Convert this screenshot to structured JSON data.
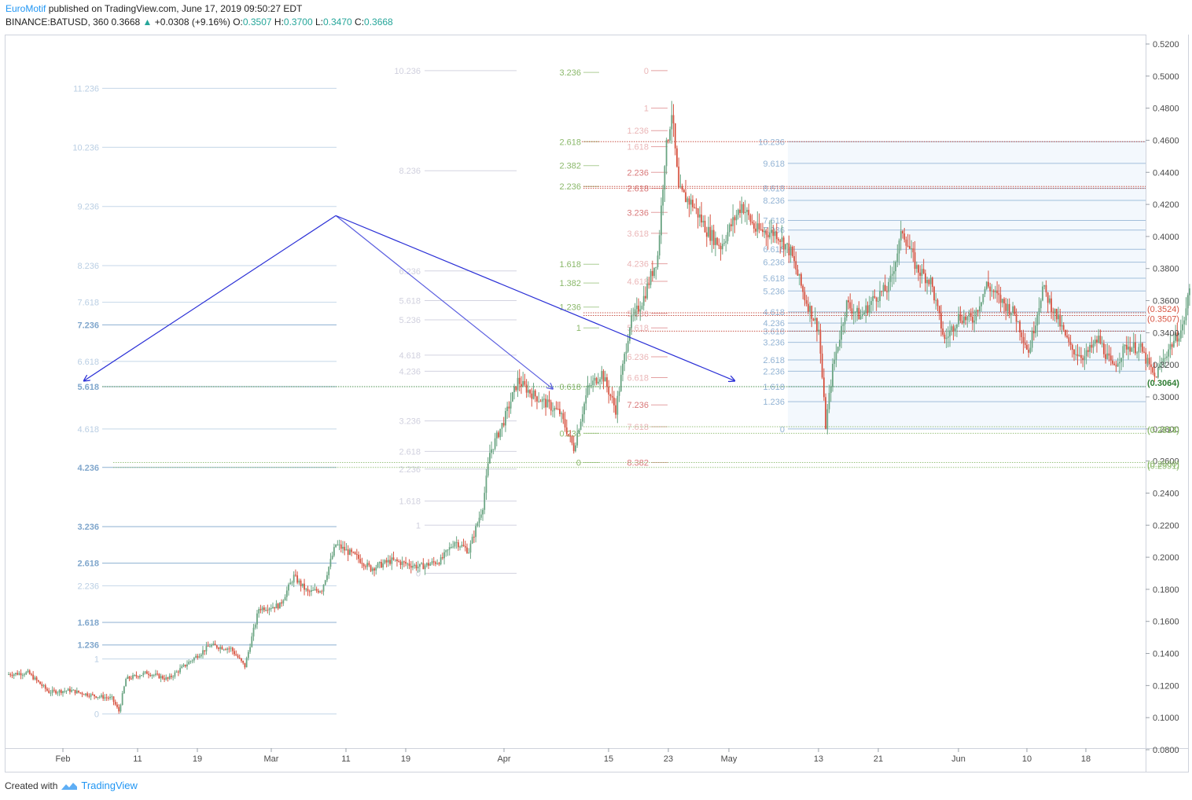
{
  "header": {
    "author": "EuroMotif",
    "published": "published on TradingView.com, June 17, 2019 09:50:27 EDT",
    "symbol": "BINANCE:BATUSD, 360",
    "last": "0.3668",
    "arrow": "▲",
    "change": "+0.0308 (+9.16%)",
    "o_label": "O:",
    "o_value": "0.3507",
    "h_label": "H:",
    "h_value": "0.3700",
    "l_label": "L:",
    "l_value": "0.3470",
    "c_label": "C:",
    "c_value": "0.3668"
  },
  "footer": {
    "created_with": "Created with",
    "brand": "TradingView"
  },
  "colors": {
    "up": "#6ba583",
    "down": "#d75442",
    "fib_blue": "#7fa6cc",
    "fib_blue_light": "#b7cde6",
    "fib_green": "#8ab86a",
    "fib_red": "#d9797a",
    "fib_gray": "#c8c8d8",
    "trend": "#2a2fd6"
  },
  "chart_data": {
    "type": "candlestick",
    "title": "",
    "price_axis": {
      "ticks": [
        "0.5200",
        "0.5000",
        "0.4800",
        "0.4600",
        "0.4400",
        "0.4200",
        "0.4000",
        "0.3800",
        "0.3600",
        "0.3400",
        "0.3200",
        "0.3000",
        "0.2800",
        "0.2600",
        "0.2400",
        "0.2200",
        "0.2000",
        "0.1800",
        "0.1600",
        "0.1400",
        "0.1200",
        "0.1000",
        "0.0800"
      ],
      "ylim": [
        0.08,
        0.52
      ]
    },
    "time_axis": {
      "ticks": [
        "Feb",
        "11",
        "19",
        "Mar",
        "11",
        "19",
        "Apr",
        "15",
        "23",
        "May",
        "13",
        "21",
        "Jun",
        "10",
        "18"
      ],
      "range": [
        "2019-01-24",
        "2019-06-24"
      ]
    },
    "price_tags": [
      {
        "label": "(0.3524)",
        "value": 0.3524,
        "color": "#d75442"
      },
      {
        "label": "(0.3507)",
        "value": 0.3507,
        "color": "#d75442"
      },
      {
        "label": "(0.3064)",
        "value": 0.3064,
        "color": "#2e7d32"
      },
      {
        "label": "(0.2814)",
        "value": 0.2814,
        "color": "#8ab86a"
      },
      {
        "label": "(0.2773)",
        "value": 0.2773,
        "color": "#8ab86a"
      },
      {
        "label": "(0.2591)",
        "value": 0.2591,
        "color": "#8ab86a"
      },
      {
        "label": "(0.2560)",
        "value": 0.256,
        "color": "#8ab86a"
      }
    ],
    "fib_sets": [
      {
        "name": "left-blue",
        "color": "#7fa6cc",
        "levels": [
          {
            "label": "11.236",
            "price": 0.4924
          },
          {
            "label": "10.236",
            "price": 0.4556
          },
          {
            "label": "9.236",
            "price": 0.4187
          },
          {
            "label": "8.236",
            "price": 0.3818
          },
          {
            "label": "7.618",
            "price": 0.359
          },
          {
            "label": "7.236",
            "price": 0.3449
          },
          {
            "label": "6.618",
            "price": 0.3221
          },
          {
            "label": "5.618",
            "price": 0.3064
          },
          {
            "label": "4.618",
            "price": 0.28
          },
          {
            "label": "4.236",
            "price": 0.256
          },
          {
            "label": "3.236",
            "price": 0.2191
          },
          {
            "label": "2.618",
            "price": 0.1963
          },
          {
            "label": "2.236",
            "price": 0.1822
          },
          {
            "label": "1.618",
            "price": 0.1594
          },
          {
            "label": "1.236",
            "price": 0.1453
          },
          {
            "label": "1",
            "price": 0.1366
          },
          {
            "label": "0",
            "price": 0.1023
          }
        ]
      },
      {
        "name": "mid-gray",
        "color": "#c8c8d8",
        "levels": [
          {
            "label": "10.236",
            "price": 0.5034
          },
          {
            "label": "8.236",
            "price": 0.441
          },
          {
            "label": "6.236",
            "price": 0.3785
          },
          {
            "label": "5.618",
            "price": 0.36
          },
          {
            "label": "5.236",
            "price": 0.348
          },
          {
            "label": "4.618",
            "price": 0.326
          },
          {
            "label": "4.236",
            "price": 0.316
          },
          {
            "label": "3.236",
            "price": 0.285
          },
          {
            "label": "2.618",
            "price": 0.266
          },
          {
            "label": "2.236",
            "price": 0.255
          },
          {
            "label": "1.618",
            "price": 0.235
          },
          {
            "label": "1",
            "price": 0.22
          },
          {
            "label": "0",
            "price": 0.19
          }
        ]
      },
      {
        "name": "mid-green",
        "color": "#8ab86a",
        "levels": [
          {
            "label": "3.236",
            "price": 0.5023
          },
          {
            "label": "2.618",
            "price": 0.4591
          },
          {
            "label": "2.382",
            "price": 0.4442
          },
          {
            "label": "2.236",
            "price": 0.4312
          },
          {
            "label": "1.618",
            "price": 0.3827
          },
          {
            "label": "1.382",
            "price": 0.371
          },
          {
            "label": "1.236",
            "price": 0.356
          },
          {
            "label": "1",
            "price": 0.343
          },
          {
            "label": "0.618",
            "price": 0.3064
          },
          {
            "label": "0.236",
            "price": 0.2773
          },
          {
            "label": "0",
            "price": 0.2591
          }
        ]
      },
      {
        "name": "mid-red",
        "color": "#d9797a",
        "levels": [
          {
            "label": "0",
            "price": 0.5034
          },
          {
            "label": "1",
            "price": 0.48
          },
          {
            "label": "1.236",
            "price": 0.466
          },
          {
            "label": "1.618",
            "price": 0.456
          },
          {
            "label": "2.236",
            "price": 0.44
          },
          {
            "label": "2.618",
            "price": 0.43
          },
          {
            "label": "3.236",
            "price": 0.415
          },
          {
            "label": "3.618",
            "price": 0.402
          },
          {
            "label": "4.236",
            "price": 0.383
          },
          {
            "label": "4.618",
            "price": 0.372
          },
          {
            "label": "5.236",
            "price": 0.352
          },
          {
            "label": "5.618",
            "price": 0.343
          },
          {
            "label": "6.236",
            "price": 0.325
          },
          {
            "label": "6.618",
            "price": 0.312
          },
          {
            "label": "7.236",
            "price": 0.295
          },
          {
            "label": "7.618",
            "price": 0.2814
          },
          {
            "label": "8.382",
            "price": 0.2591
          }
        ]
      },
      {
        "name": "right-blue",
        "color": "#7fa6cc",
        "levels": [
          {
            "label": "10.236",
            "price": 0.4591
          },
          {
            "label": "9.618",
            "price": 0.4456
          },
          {
            "label": "8.618",
            "price": 0.43
          },
          {
            "label": "8.236",
            "price": 0.4225
          },
          {
            "label": "7.618",
            "price": 0.41
          },
          {
            "label": "7.236",
            "price": 0.404
          },
          {
            "label": "6.618",
            "price": 0.392
          },
          {
            "label": "6.236",
            "price": 0.384
          },
          {
            "label": "5.618",
            "price": 0.374
          },
          {
            "label": "5.236",
            "price": 0.366
          },
          {
            "label": "4.618",
            "price": 0.353
          },
          {
            "label": "4.236",
            "price": 0.346
          },
          {
            "label": "3.618",
            "price": 0.341
          },
          {
            "label": "3.236",
            "price": 0.334
          },
          {
            "label": "2.618",
            "price": 0.323
          },
          {
            "label": "2.236",
            "price": 0.316
          },
          {
            "label": "1.618",
            "price": 0.3064
          },
          {
            "label": "1.236",
            "price": 0.297
          },
          {
            "label": "0",
            "price": 0.28
          }
        ]
      }
    ],
    "trend_lines": [
      {
        "name": "rise",
        "from": {
          "date": "2019-03-12",
          "price": 0.413
        },
        "to": {
          "date": "2019-02-04",
          "price": 0.31
        }
      },
      {
        "name": "drop-to-apr",
        "from": {
          "date": "2019-03-12",
          "price": 0.413
        },
        "to": {
          "date": "2019-04-12",
          "price": 0.305
        }
      },
      {
        "name": "drop-to-may",
        "from": {
          "date": "2019-03-12",
          "price": 0.413
        },
        "to": {
          "date": "2019-05-08",
          "price": 0.31
        }
      }
    ],
    "price_path": [
      [
        "2019-01-24",
        0.127
      ],
      [
        "2019-01-27",
        0.128
      ],
      [
        "2019-01-30",
        0.116
      ],
      [
        "2019-02-02",
        0.117
      ],
      [
        "2019-02-05",
        0.114
      ],
      [
        "2019-02-08",
        0.112
      ],
      [
        "2019-02-09",
        0.104
      ],
      [
        "2019-02-10",
        0.124
      ],
      [
        "2019-02-13",
        0.128
      ],
      [
        "2019-02-16",
        0.124
      ],
      [
        "2019-02-20",
        0.138
      ],
      [
        "2019-02-22",
        0.145
      ],
      [
        "2019-02-25",
        0.143
      ],
      [
        "2019-02-27",
        0.132
      ],
      [
        "2019-03-01",
        0.168
      ],
      [
        "2019-03-04",
        0.17
      ],
      [
        "2019-03-06",
        0.188
      ],
      [
        "2019-03-08",
        0.178
      ],
      [
        "2019-03-10",
        0.18
      ],
      [
        "2019-03-12",
        0.208
      ],
      [
        "2019-03-15",
        0.2
      ],
      [
        "2019-03-17",
        0.193
      ],
      [
        "2019-03-20",
        0.198
      ],
      [
        "2019-03-24",
        0.194
      ],
      [
        "2019-03-27",
        0.198
      ],
      [
        "2019-03-29",
        0.21
      ],
      [
        "2019-03-31",
        0.204
      ],
      [
        "2019-04-02",
        0.232
      ],
      [
        "2019-04-03",
        0.265
      ],
      [
        "2019-04-05",
        0.285
      ],
      [
        "2019-04-07",
        0.31
      ],
      [
        "2019-04-09",
        0.302
      ],
      [
        "2019-04-11",
        0.296
      ],
      [
        "2019-04-13",
        0.29
      ],
      [
        "2019-04-15",
        0.268
      ],
      [
        "2019-04-17",
        0.305
      ],
      [
        "2019-04-19",
        0.315
      ],
      [
        "2019-04-21",
        0.292
      ],
      [
        "2019-04-23",
        0.345
      ],
      [
        "2019-04-25",
        0.362
      ],
      [
        "2019-04-27",
        0.388
      ],
      [
        "2019-04-28",
        0.448
      ],
      [
        "2019-04-29",
        0.478
      ],
      [
        "2019-04-30",
        0.428
      ],
      [
        "2019-05-02",
        0.42
      ],
      [
        "2019-05-04",
        0.404
      ],
      [
        "2019-05-06",
        0.394
      ],
      [
        "2019-05-09",
        0.42
      ],
      [
        "2019-05-11",
        0.404
      ],
      [
        "2019-05-14",
        0.402
      ],
      [
        "2019-05-16",
        0.39
      ],
      [
        "2019-05-18",
        0.362
      ],
      [
        "2019-05-20",
        0.342
      ],
      [
        "2019-05-21",
        0.282
      ],
      [
        "2019-05-22",
        0.318
      ],
      [
        "2019-05-24",
        0.358
      ],
      [
        "2019-05-26",
        0.35
      ],
      [
        "2019-05-28",
        0.362
      ],
      [
        "2019-05-30",
        0.368
      ],
      [
        "2019-06-01",
        0.404
      ],
      [
        "2019-06-03",
        0.38
      ],
      [
        "2019-06-05",
        0.372
      ],
      [
        "2019-06-07",
        0.335
      ],
      [
        "2019-06-09",
        0.35
      ],
      [
        "2019-06-11",
        0.348
      ],
      [
        "2019-06-13",
        0.37
      ],
      [
        "2019-06-15",
        0.36
      ],
      [
        "2019-06-17",
        0.352
      ],
      [
        "2019-06-19",
        0.328
      ],
      [
        "2019-06-21",
        0.368
      ],
      [
        "2019-06-23",
        0.35
      ],
      [
        "2019-06-25",
        0.33
      ],
      [
        "2019-06-27",
        0.325
      ],
      [
        "2019-06-29",
        0.336
      ],
      [
        "2019-07-01",
        0.318
      ],
      [
        "2019-07-03",
        0.332
      ],
      [
        "2019-07-05",
        0.33
      ],
      [
        "2019-07-07",
        0.312
      ],
      [
        "2019-07-09",
        0.33
      ],
      [
        "2019-07-11",
        0.343
      ],
      [
        "2019-07-12",
        0.367
      ]
    ]
  }
}
